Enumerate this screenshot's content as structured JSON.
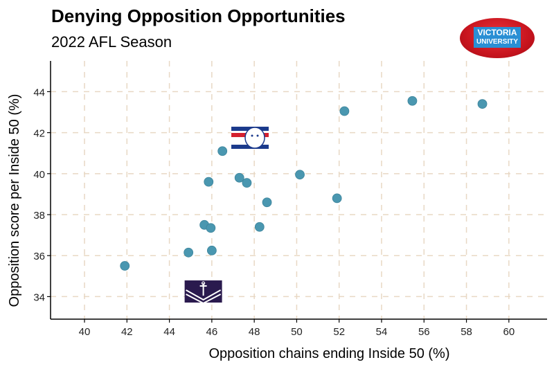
{
  "header": {
    "title": "Denying Opposition Opportunities",
    "subtitle": "2022 AFL Season"
  },
  "logo": {
    "line1": "VICTORIA",
    "line2": "UNIVERSITY"
  },
  "colors": {
    "point": "#4a97b0",
    "grid": "#e8d8c4",
    "axis": "#000000"
  },
  "chart_data": {
    "type": "scatter",
    "title": "Denying Opposition Opportunities",
    "subtitle": "2022 AFL Season",
    "xlabel": "Opposition chains ending Inside 50 (%)",
    "ylabel": "Opposition score per Inside 50 (%)",
    "xlim": [
      38.4,
      61.8
    ],
    "ylim": [
      32.9,
      45.5
    ],
    "xticks": [
      40,
      42,
      44,
      46,
      48,
      50,
      52,
      54,
      56,
      58,
      60
    ],
    "yticks": [
      34,
      36,
      38,
      40,
      42,
      44
    ],
    "grid": true,
    "points": [
      {
        "x": 41.9,
        "y": 35.5
      },
      {
        "x": 44.9,
        "y": 36.15
      },
      {
        "x": 46.0,
        "y": 36.25
      },
      {
        "x": 45.65,
        "y": 37.5
      },
      {
        "x": 45.95,
        "y": 37.35
      },
      {
        "x": 45.85,
        "y": 39.6
      },
      {
        "x": 46.5,
        "y": 41.1
      },
      {
        "x": 47.3,
        "y": 39.8
      },
      {
        "x": 47.65,
        "y": 39.55
      },
      {
        "x": 48.25,
        "y": 37.4
      },
      {
        "x": 48.6,
        "y": 38.6
      },
      {
        "x": 50.15,
        "y": 39.95
      },
      {
        "x": 51.9,
        "y": 38.8
      },
      {
        "x": 52.25,
        "y": 43.05
      },
      {
        "x": 55.45,
        "y": 43.55
      },
      {
        "x": 58.75,
        "y": 43.4
      }
    ],
    "team_logos": [
      {
        "team": "Western Bulldogs",
        "x": 47.8,
        "y": 41.75
      },
      {
        "team": "Fremantle",
        "x": 45.6,
        "y": 34.25
      }
    ]
  }
}
